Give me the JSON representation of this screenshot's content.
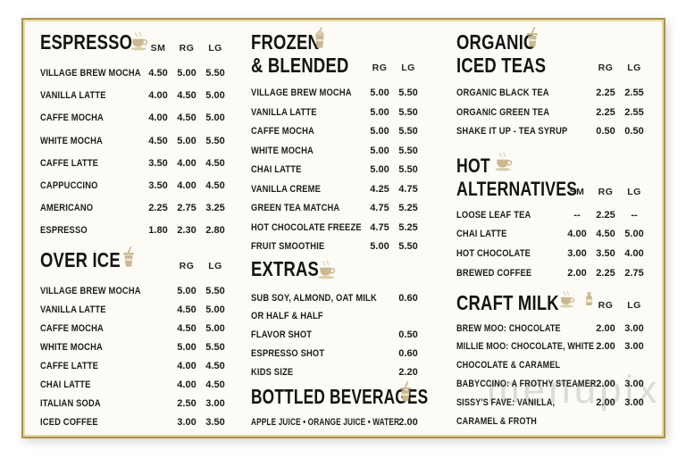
{
  "watermark": "menupix",
  "colors": {
    "frame_gold": "#ab9249",
    "icon_tan": "#cbb892",
    "text": "#1b1b1b",
    "background": "#fcfbf6"
  },
  "sections": [
    {
      "id": "espresso",
      "title": "ESPRESSO",
      "icons": [
        "coffee-cup-icon"
      ],
      "size_columns": [
        "SM",
        "RG",
        "LG"
      ],
      "items": [
        {
          "name": "VILLAGE BREW MOCHA",
          "prices": [
            "4.50",
            "5.00",
            "5.50"
          ]
        },
        {
          "name": "VANILLA LATTE",
          "prices": [
            "4.00",
            "4.50",
            "5.00"
          ]
        },
        {
          "name": "CAFFE MOCHA",
          "prices": [
            "4.00",
            "4.50",
            "5.00"
          ]
        },
        {
          "name": "WHITE MOCHA",
          "prices": [
            "4.50",
            "5.00",
            "5.50"
          ]
        },
        {
          "name": "CAFFE LATTE",
          "prices": [
            "3.50",
            "4.00",
            "4.50"
          ]
        },
        {
          "name": "CAPPUCCINO",
          "prices": [
            "3.50",
            "4.00",
            "4.50"
          ]
        },
        {
          "name": "AMERICANO",
          "prices": [
            "2.25",
            "2.75",
            "3.25"
          ]
        },
        {
          "name": "ESPRESSO",
          "prices": [
            "1.80",
            "2.30",
            "2.80"
          ]
        }
      ]
    },
    {
      "id": "over-ice",
      "title": "OVER ICE",
      "icons": [
        "iced-drink-icon"
      ],
      "size_columns": [
        "RG",
        "LG"
      ],
      "items": [
        {
          "name": "VILLAGE BREW MOCHA",
          "prices": [
            "5.00",
            "5.50"
          ]
        },
        {
          "name": "VANILLA LATTE",
          "prices": [
            "4.50",
            "5.00"
          ]
        },
        {
          "name": "CAFFE MOCHA",
          "prices": [
            "4.50",
            "5.00"
          ]
        },
        {
          "name": "WHITE MOCHA",
          "prices": [
            "5.00",
            "5.50"
          ]
        },
        {
          "name": "CAFFE LATTE",
          "prices": [
            "4.00",
            "4.50"
          ]
        },
        {
          "name": "CHAI LATTE",
          "prices": [
            "4.00",
            "4.50"
          ]
        },
        {
          "name": "ITALIAN SODA",
          "prices": [
            "2.50",
            "3.00"
          ]
        },
        {
          "name": "ICED COFFEE",
          "prices": [
            "3.00",
            "3.50"
          ]
        }
      ]
    },
    {
      "id": "frozen-blended",
      "title": "FROZEN\n& BLENDED",
      "icons": [
        "milkshake-icon"
      ],
      "size_columns": [
        "RG",
        "LG"
      ],
      "items": [
        {
          "name": "VILLAGE BREW MOCHA",
          "prices": [
            "5.00",
            "5.50"
          ]
        },
        {
          "name": "VANILLA LATTE",
          "prices": [
            "5.00",
            "5.50"
          ]
        },
        {
          "name": "CAFFE MOCHA",
          "prices": [
            "5.00",
            "5.50"
          ]
        },
        {
          "name": "WHITE MOCHA",
          "prices": [
            "5.00",
            "5.50"
          ]
        },
        {
          "name": "CHAI LATTE",
          "prices": [
            "5.00",
            "5.50"
          ]
        },
        {
          "name": "VANILLA CREME",
          "prices": [
            "4.25",
            "4.75"
          ]
        },
        {
          "name": "GREEN TEA MATCHA",
          "prices": [
            "4.75",
            "5.25"
          ]
        },
        {
          "name": "HOT CHOCOLATE FREEZE",
          "prices": [
            "4.75",
            "5.25"
          ]
        },
        {
          "name": "FRUIT SMOOTHIE",
          "prices": [
            "5.00",
            "5.50"
          ]
        }
      ]
    },
    {
      "id": "extras",
      "title": "EXTRAS",
      "icons": [
        "coffee-cup-icon"
      ],
      "size_columns": [],
      "items": [
        {
          "name": "SUB SOY, ALMOND, OAT MILK\nOR HALF & HALF",
          "prices": [
            "0.60"
          ]
        },
        {
          "name": "FLAVOR SHOT",
          "prices": [
            "0.50"
          ]
        },
        {
          "name": "ESPRESSO SHOT",
          "prices": [
            "0.60"
          ]
        },
        {
          "name": "KIDS SIZE",
          "prices": [
            "2.20"
          ]
        }
      ]
    },
    {
      "id": "bottled-beverages",
      "title": "BOTTLED BEVERAGES",
      "icons": [
        "iced-drink-icon"
      ],
      "size_columns": [],
      "items": [
        {
          "name": "APPLE JUICE • ORANGE JUICE • WATER",
          "prices": [
            "2.00"
          ]
        }
      ]
    },
    {
      "id": "organic-iced-teas",
      "title": "ORGANIC\nICED TEAS",
      "icons": [
        "iced-drink-icon"
      ],
      "size_columns": [
        "RG",
        "LG"
      ],
      "items": [
        {
          "name": "ORGANIC BLACK TEA",
          "prices": [
            "2.25",
            "2.55"
          ]
        },
        {
          "name": "ORGANIC GREEN TEA",
          "prices": [
            "2.25",
            "2.55"
          ]
        },
        {
          "name": "SHAKE IT UP - TEA SYRUP",
          "prices": [
            "0.50",
            "0.50"
          ]
        }
      ]
    },
    {
      "id": "hot-alternatives",
      "title": "HOT\nALTERNATIVES",
      "icons": [
        "coffee-cup-icon"
      ],
      "size_columns": [
        "SM",
        "RG",
        "LG"
      ],
      "items": [
        {
          "name": "LOOSE LEAF TEA",
          "prices": [
            "--",
            "2.25",
            "--"
          ]
        },
        {
          "name": "CHAI LATTE",
          "prices": [
            "4.00",
            "4.50",
            "5.00"
          ]
        },
        {
          "name": "HOT CHOCOLATE",
          "prices": [
            "3.00",
            "3.50",
            "4.00"
          ]
        },
        {
          "name": "BREWED COFFEE",
          "prices": [
            "2.00",
            "2.25",
            "2.75"
          ]
        }
      ]
    },
    {
      "id": "craft-milk",
      "title": "CRAFT MILK",
      "icons": [
        "coffee-cup-icon",
        "milk-bottle-icon"
      ],
      "size_columns": [
        "RG",
        "LG"
      ],
      "items": [
        {
          "name": "BREW MOO: CHOCOLATE",
          "prices": [
            "2.00",
            "3.00"
          ]
        },
        {
          "name": "MILLIE MOO: CHOCOLATE, WHITE\nCHOCOLATE & CARAMEL",
          "prices": [
            "2.00",
            "3.00"
          ]
        },
        {
          "name": "BABYCCINO: A FROTHY STEAMER",
          "prices": [
            "2.00",
            "3.00"
          ]
        },
        {
          "name": "SISSY'S FAVE: VANILLA,\nCARAMEL & FROTH",
          "prices": [
            "2.00",
            "3.00"
          ]
        }
      ]
    }
  ]
}
